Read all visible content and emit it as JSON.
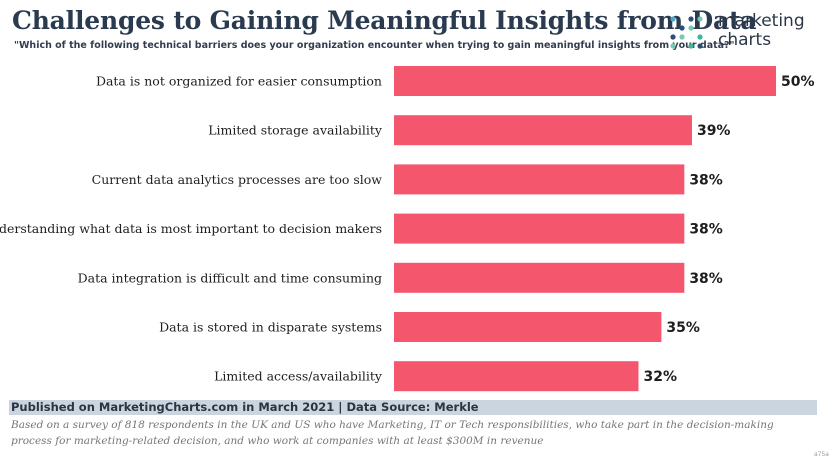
{
  "header": {
    "title": "Challenges to Gaining Meaningful Insights from Data",
    "subtitle": "\"Which of the following technical barriers does your organization encounter when trying to gain meaningful insights from your data?\""
  },
  "logo": {
    "line1": "marketing",
    "line2": "charts",
    "dot_colors": [
      "#4ea8c7",
      "#3fb59a",
      "#2b4f7a",
      "#7ac7b3"
    ]
  },
  "chart_data": {
    "type": "bar",
    "orientation": "horizontal",
    "categories": [
      "Data is not organized for easier consumption",
      "Limited storage availability",
      "Current data analytics processes are too slow",
      "Understanding what data is most important to decision makers",
      "Data integration is difficult and time consuming",
      "Data is stored in disparate systems",
      "Limited access/availability"
    ],
    "values": [
      50,
      39,
      38,
      38,
      38,
      35,
      32
    ],
    "value_labels": [
      "50%",
      "39%",
      "38%",
      "38%",
      "38%",
      "35%",
      "32%"
    ],
    "xlim": [
      0,
      50
    ],
    "grid": false,
    "bar_color": "#f4566d"
  },
  "footer": {
    "source": "Published on MarketingCharts.com in March 2021 | Data Source: Merkle",
    "note": "Based on a survey of 818 respondents in the UK and US who have Marketing, IT or Tech responsibilities, who take part in the decision-making process for marketing-related decision, and who work at companies with at least $300M in revenue",
    "corner_mark": "a75a"
  }
}
